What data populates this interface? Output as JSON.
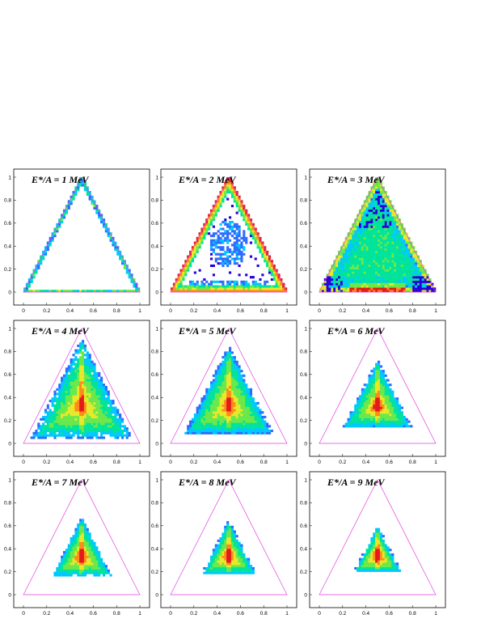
{
  "colors": {
    "triangle": "#e040e0",
    "frame": "#000000",
    "palette": [
      "#2a00d8",
      "#2f6bff",
      "#00c8ff",
      "#00e39a",
      "#6be84a",
      "#e8e82a",
      "#ff8a1a",
      "#e21a1a"
    ]
  },
  "chart_data": [
    {
      "type": "heatmap",
      "title": "E*/A = 1 MeV",
      "xlim": [
        0,
        1
      ],
      "ylim": [
        0,
        1
      ],
      "x_ticks": [
        "0",
        "0.2",
        "0.4",
        "0.6",
        "0.8",
        "1"
      ],
      "y_ticks": [
        "0",
        "0.2",
        "0.4",
        "0.6",
        "0.8",
        "1"
      ],
      "distribution": "edges",
      "shrink": 0.0,
      "fill": 0.0,
      "peak_y": 0.3,
      "noise": 0.06
    },
    {
      "type": "heatmap",
      "title": "E*/A = 2 MeV",
      "xlim": [
        0,
        1
      ],
      "ylim": [
        0,
        1
      ],
      "x_ticks": [
        "0",
        "0.2",
        "0.4",
        "0.6",
        "0.8",
        "1"
      ],
      "y_ticks": [
        "0",
        "0.2",
        "0.4",
        "0.6",
        "0.8",
        "1"
      ],
      "distribution": "edges-and-center",
      "shrink": 0.0,
      "fill": 0.35,
      "peak_y": 0.3,
      "noise": 0.1
    },
    {
      "type": "heatmap",
      "title": "E*/A = 3 MeV",
      "xlim": [
        0,
        1
      ],
      "ylim": [
        0,
        1
      ],
      "x_ticks": [
        "0",
        "0.2",
        "0.4",
        "0.6",
        "0.8",
        "1"
      ],
      "y_ticks": [
        "0",
        "0.2",
        "0.4",
        "0.6",
        "0.8",
        "1"
      ],
      "distribution": "filled",
      "shrink": 0.0,
      "fill": 0.55,
      "peak_y": 0.3,
      "noise": 0.12
    },
    {
      "type": "heatmap",
      "title": "E*/A = 4 MeV",
      "xlim": [
        0,
        1
      ],
      "ylim": [
        0,
        1
      ],
      "x_ticks": [
        "0",
        "0.2",
        "0.4",
        "0.6",
        "0.8",
        "1"
      ],
      "y_ticks": [
        "0",
        "0.2",
        "0.4",
        "0.6",
        "0.8",
        "1"
      ],
      "distribution": "rounded",
      "shrink": 0.12,
      "fill": 0.6,
      "peak_y": 0.33,
      "noise": 0.1
    },
    {
      "type": "heatmap",
      "title": "E*/A = 5 MeV",
      "xlim": [
        0,
        1
      ],
      "ylim": [
        0,
        1
      ],
      "x_ticks": [
        "0",
        "0.2",
        "0.4",
        "0.6",
        "0.8",
        "1"
      ],
      "y_ticks": [
        "0",
        "0.2",
        "0.4",
        "0.6",
        "0.8",
        "1"
      ],
      "distribution": "peaked",
      "shrink": 0.22,
      "fill": 0.7,
      "peak_y": 0.33,
      "noise": 0.08
    },
    {
      "type": "heatmap",
      "title": "E*/A = 6 MeV",
      "xlim": [
        0,
        1
      ],
      "ylim": [
        0,
        1
      ],
      "x_ticks": [
        "0",
        "0.2",
        "0.4",
        "0.6",
        "0.8",
        "1"
      ],
      "y_ticks": [
        "0",
        "0.2",
        "0.4",
        "0.6",
        "0.8",
        "1"
      ],
      "distribution": "peaked",
      "shrink": 0.4,
      "fill": 0.75,
      "peak_y": 0.33,
      "noise": 0.06
    },
    {
      "type": "heatmap",
      "title": "E*/A = 7 MeV",
      "xlim": [
        0,
        1
      ],
      "ylim": [
        0,
        1
      ],
      "x_ticks": [
        "0",
        "0.2",
        "0.4",
        "0.6",
        "0.8",
        "1"
      ],
      "y_ticks": [
        "0",
        "0.2",
        "0.4",
        "0.6",
        "0.8",
        "1"
      ],
      "distribution": "peaked",
      "shrink": 0.47,
      "fill": 0.78,
      "peak_y": 0.34,
      "noise": 0.05
    },
    {
      "type": "heatmap",
      "title": "E*/A = 8 MeV",
      "xlim": [
        0,
        1
      ],
      "ylim": [
        0,
        1
      ],
      "x_ticks": [
        "0",
        "0.2",
        "0.4",
        "0.6",
        "0.8",
        "1"
      ],
      "y_ticks": [
        "0",
        "0.2",
        "0.4",
        "0.6",
        "0.8",
        "1"
      ],
      "distribution": "peaked",
      "shrink": 0.52,
      "fill": 0.8,
      "peak_y": 0.34,
      "noise": 0.05
    },
    {
      "type": "heatmap",
      "title": "E*/A = 9 MeV",
      "xlim": [
        0,
        1
      ],
      "ylim": [
        0,
        1
      ],
      "x_ticks": [
        "0",
        "0.2",
        "0.4",
        "0.6",
        "0.8",
        "1"
      ],
      "y_ticks": [
        "0",
        "0.2",
        "0.4",
        "0.6",
        "0.8",
        "1"
      ],
      "distribution": "peaked",
      "shrink": 0.58,
      "fill": 0.82,
      "peak_y": 0.35,
      "noise": 0.05
    }
  ]
}
